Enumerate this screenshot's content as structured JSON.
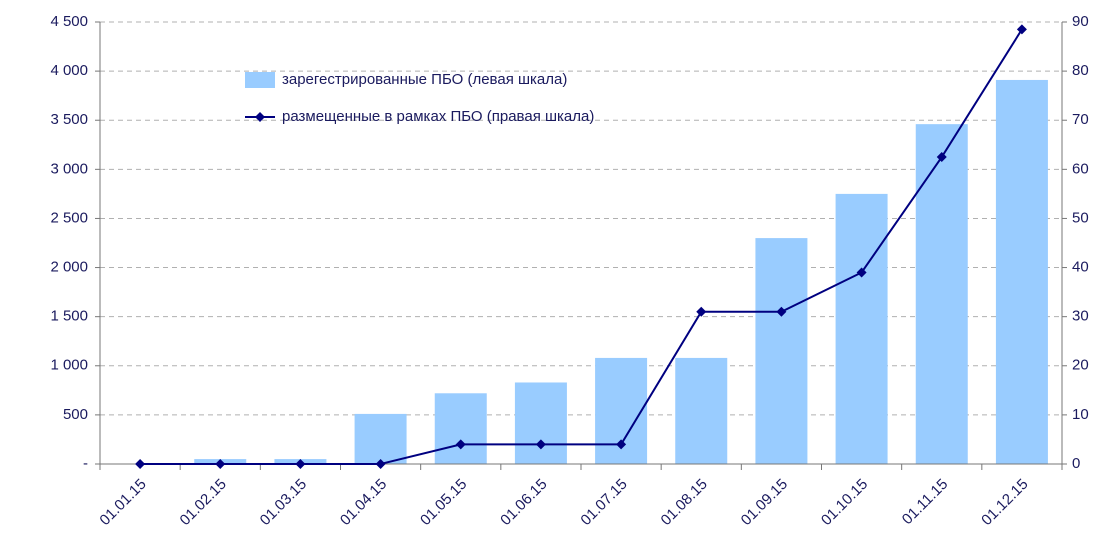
{
  "chart_data": {
    "type": "bar",
    "categories": [
      "01.01.15",
      "01.02.15",
      "01.03.15",
      "01.04.15",
      "01.05.15",
      "01.06.15",
      "01.07.15",
      "01.08.15",
      "01.09.15",
      "01.10.15",
      "01.11.15",
      "01.12.15"
    ],
    "series": [
      {
        "name": "зарегестрированные ПБО (левая шкала)",
        "type": "bar",
        "color": "#99ccff",
        "values": [
          0,
          50,
          50,
          510,
          720,
          830,
          1080,
          1080,
          2300,
          2750,
          3460,
          3910
        ]
      },
      {
        "name": "размещенные в рамках ПБО (правая шкала)",
        "type": "line",
        "axis": "y2",
        "color": "#000080",
        "values": [
          0,
          0,
          0,
          0,
          4,
          4,
          4,
          31,
          31,
          39,
          62.5,
          88.5
        ]
      }
    ],
    "ylim": [
      0,
      4500
    ],
    "yticks": [
      {
        "value": 0,
        "label": "-"
      },
      500,
      {
        "value": 1000,
        "label": "1 000"
      },
      {
        "value": 1500,
        "label": "1 500"
      },
      {
        "value": 2000,
        "label": "2 000"
      },
      {
        "value": 2500,
        "label": "2 500"
      },
      {
        "value": 3000,
        "label": "3 000"
      },
      {
        "value": 3500,
        "label": "3 500"
      },
      {
        "value": 4000,
        "label": "4 000"
      },
      {
        "value": 4500,
        "label": "4 500"
      }
    ],
    "y2lim": [
      0,
      90
    ],
    "y2ticks": [
      0,
      10,
      20,
      30,
      40,
      50,
      60,
      70,
      80,
      90
    ],
    "grid": true,
    "legend": "upper left"
  }
}
